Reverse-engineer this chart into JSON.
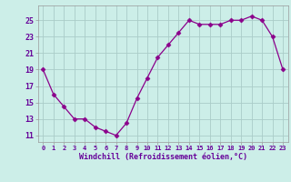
{
  "x": [
    0,
    1,
    2,
    3,
    4,
    5,
    6,
    7,
    8,
    9,
    10,
    11,
    12,
    13,
    14,
    15,
    16,
    17,
    18,
    19,
    20,
    21,
    22,
    23
  ],
  "y": [
    19.0,
    16.0,
    14.5,
    13.0,
    13.0,
    12.0,
    11.5,
    11.0,
    12.5,
    15.5,
    18.0,
    20.5,
    22.0,
    23.5,
    25.0,
    24.5,
    24.5,
    24.5,
    25.0,
    25.0,
    25.5,
    25.0,
    23.0,
    19.0
  ],
  "line_color": "#8B008B",
  "marker": "D",
  "marker_size": 2.5,
  "bg_color": "#cceee8",
  "grid_color": "#aaccc8",
  "xlabel": "Windchill (Refroidissement éolien,°C)",
  "xlabel_color": "#660099",
  "tick_color": "#660099",
  "yticks": [
    11,
    13,
    15,
    17,
    19,
    21,
    23,
    25
  ],
  "ylim": [
    10.2,
    26.8
  ],
  "xlim": [
    -0.5,
    23.5
  ],
  "figsize": [
    3.2,
    2.0
  ],
  "dpi": 100
}
